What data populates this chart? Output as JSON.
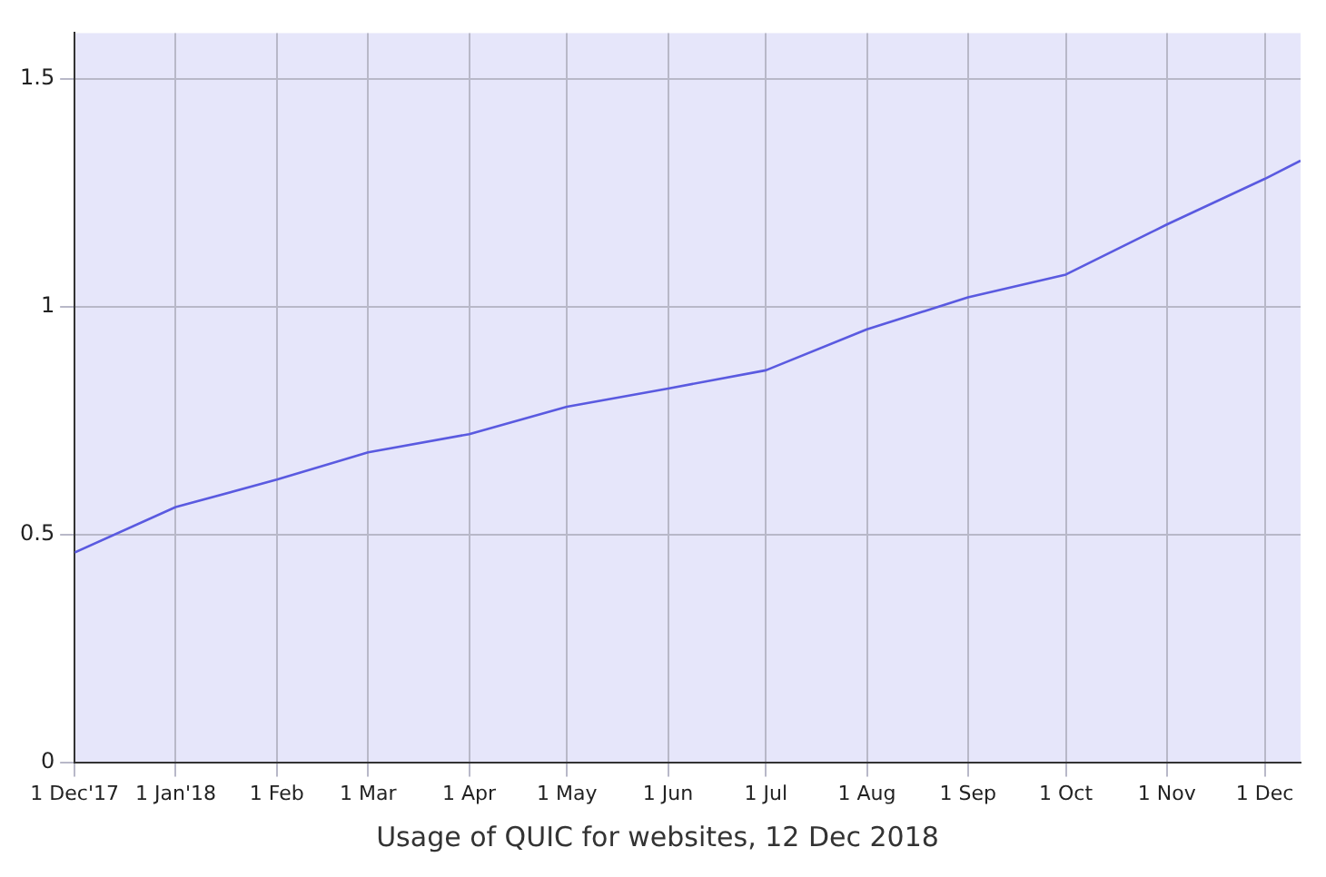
{
  "chart_data": {
    "type": "line",
    "title": "Usage of QUIC for websites, 12 Dec 2018",
    "x": [
      "2017-12-01",
      "2018-01-01",
      "2018-02-01",
      "2018-03-01",
      "2018-04-01",
      "2018-05-01",
      "2018-06-01",
      "2018-07-01",
      "2018-08-01",
      "2018-09-01",
      "2018-10-01",
      "2018-11-01",
      "2018-12-01",
      "2018-12-12"
    ],
    "series": [
      {
        "color": "#5a5ae0",
        "values": [
          0.46,
          0.56,
          0.62,
          0.68,
          0.72,
          0.78,
          0.82,
          0.86,
          0.95,
          1.02,
          1.07,
          1.18,
          1.28,
          1.32
        ]
      }
    ],
    "xlim": [
      "2017-12-01",
      "2018-12-12"
    ],
    "xticks": [
      {
        "value": "2017-12-01",
        "label": "1 Dec'17"
      },
      {
        "value": "2018-01-01",
        "label": "1 Jan'18"
      },
      {
        "value": "2018-02-01",
        "label": "1 Feb"
      },
      {
        "value": "2018-03-01",
        "label": "1 Mar"
      },
      {
        "value": "2018-04-01",
        "label": "1 Apr"
      },
      {
        "value": "2018-05-01",
        "label": "1 May"
      },
      {
        "value": "2018-06-01",
        "label": "1 Jun"
      },
      {
        "value": "2018-07-01",
        "label": "1 Jul"
      },
      {
        "value": "2018-08-01",
        "label": "1 Aug"
      },
      {
        "value": "2018-09-01",
        "label": "1 Sep"
      },
      {
        "value": "2018-10-01",
        "label": "1 Oct"
      },
      {
        "value": "2018-11-01",
        "label": "1 Nov"
      },
      {
        "value": "2018-12-01",
        "label": "1 Dec"
      }
    ],
    "ylim": [
      0,
      1.6
    ],
    "yticks": [
      0,
      0.5,
      1,
      1.5
    ],
    "grid": true,
    "legend": false,
    "marker": "none",
    "line_style": "solid"
  }
}
